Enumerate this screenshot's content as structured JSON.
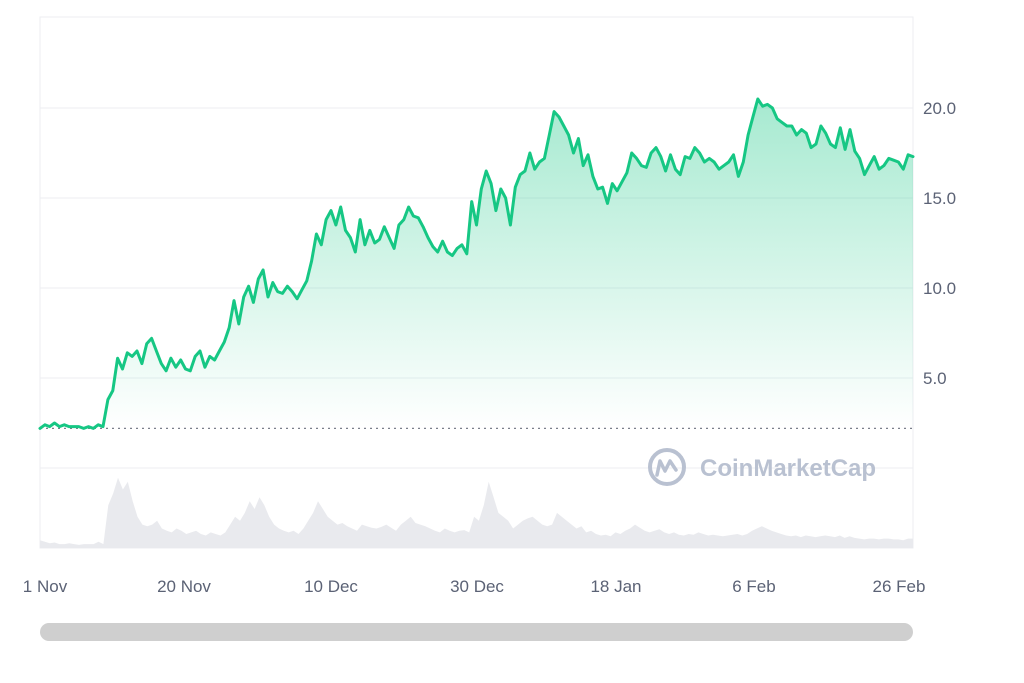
{
  "watermark": {
    "text": "CoinMarketCap",
    "icon": "coinmarketcap-logo-icon"
  },
  "colors": {
    "line": "#16c784",
    "area_top": "#16c784",
    "volume": "#e9eaee",
    "grid": "#eceef2",
    "axis_text": "#5b6275",
    "reference_line": "#7a7f8a",
    "scrollbar": "#cfcfcf"
  },
  "chart_data": {
    "type": "line",
    "title": "",
    "xlabel": "",
    "ylabel": "",
    "x_tick_labels": [
      "1 Nov",
      "20 Nov",
      "10 Dec",
      "30 Dec",
      "18 Jan",
      "6 Feb",
      "26 Feb"
    ],
    "y_tick_labels": [
      "5.0",
      "10.0",
      "15.0",
      "20.0"
    ],
    "y_ticks": [
      5,
      10,
      15,
      20
    ],
    "ylim": [
      -3,
      25
    ],
    "y_axis_position": "right",
    "grid": true,
    "reference_line_value": 2.2,
    "series": [
      {
        "values": [
          2.2,
          2.4,
          2.3,
          2.5,
          2.3,
          2.4,
          2.3,
          2.3,
          2.3,
          2.2,
          2.3,
          2.2,
          2.4,
          2.3,
          3.8,
          4.3,
          6.1,
          5.5,
          6.4,
          6.2,
          6.5,
          5.8,
          6.9,
          7.2,
          6.5,
          5.8,
          5.4,
          6.1,
          5.6,
          6.0,
          5.5,
          5.4,
          6.2,
          6.5,
          5.6,
          6.2,
          6.0,
          6.5,
          7.0,
          7.8,
          9.3,
          8.0,
          9.5,
          10.1,
          9.2,
          10.5,
          11.0,
          9.5,
          10.3,
          9.8,
          9.7,
          10.1,
          9.8,
          9.4,
          9.9,
          10.4,
          11.5,
          13.0,
          12.4,
          13.8,
          14.3,
          13.5,
          14.5,
          13.2,
          12.8,
          12.0,
          13.8,
          12.4,
          13.2,
          12.5,
          12.7,
          13.4,
          12.8,
          12.2,
          13.5,
          13.8,
          14.5,
          14.0,
          13.9,
          13.4,
          12.8,
          12.3,
          12.0,
          12.6,
          12.0,
          11.8,
          12.2,
          12.4,
          11.9,
          14.8,
          13.5,
          15.5,
          16.5,
          15.8,
          14.3,
          15.5,
          15.0,
          13.5,
          15.6,
          16.3,
          16.5,
          17.5,
          16.6,
          17.0,
          17.2,
          18.5,
          19.8,
          19.5,
          19.0,
          18.5,
          17.5,
          18.3,
          16.8,
          17.4,
          16.2,
          15.5,
          15.6,
          14.7,
          15.8,
          15.4,
          15.9,
          16.4,
          17.5,
          17.2,
          16.8,
          16.7,
          17.5,
          17.8,
          17.3,
          16.5,
          17.4,
          16.6,
          16.3,
          17.3,
          17.2,
          17.8,
          17.5,
          17.0,
          17.2,
          17.0,
          16.6,
          16.8,
          17.0,
          17.4,
          16.2,
          17.0,
          18.5,
          19.5,
          20.5,
          20.1,
          20.2,
          20.0,
          19.4,
          19.2,
          19.0,
          19.0,
          18.5,
          18.8,
          18.6,
          17.8,
          18.0,
          19.0,
          18.6,
          18.0,
          17.8,
          18.9,
          17.7,
          18.8,
          17.6,
          17.2,
          16.3,
          16.8,
          17.3,
          16.6,
          16.8,
          17.2,
          17.1,
          17.0,
          16.6,
          17.4,
          17.3
        ]
      }
    ],
    "volume": [
      0.1,
      0.08,
      0.06,
      0.07,
      0.05,
      0.05,
      0.06,
      0.05,
      0.04,
      0.05,
      0.05,
      0.05,
      0.08,
      0.05,
      0.55,
      0.7,
      0.9,
      0.75,
      0.85,
      0.6,
      0.4,
      0.3,
      0.28,
      0.3,
      0.35,
      0.25,
      0.22,
      0.2,
      0.25,
      0.22,
      0.18,
      0.2,
      0.22,
      0.18,
      0.16,
      0.2,
      0.18,
      0.16,
      0.2,
      0.3,
      0.4,
      0.35,
      0.45,
      0.6,
      0.5,
      0.65,
      0.55,
      0.4,
      0.3,
      0.25,
      0.22,
      0.2,
      0.22,
      0.18,
      0.25,
      0.35,
      0.45,
      0.6,
      0.5,
      0.4,
      0.35,
      0.3,
      0.32,
      0.28,
      0.25,
      0.22,
      0.3,
      0.28,
      0.26,
      0.25,
      0.27,
      0.3,
      0.26,
      0.22,
      0.3,
      0.35,
      0.4,
      0.32,
      0.3,
      0.28,
      0.25,
      0.22,
      0.2,
      0.25,
      0.22,
      0.2,
      0.22,
      0.23,
      0.2,
      0.4,
      0.35,
      0.55,
      0.85,
      0.65,
      0.45,
      0.4,
      0.35,
      0.25,
      0.3,
      0.35,
      0.38,
      0.4,
      0.35,
      0.3,
      0.28,
      0.3,
      0.45,
      0.4,
      0.35,
      0.3,
      0.25,
      0.28,
      0.2,
      0.22,
      0.18,
      0.16,
      0.17,
      0.15,
      0.2,
      0.18,
      0.22,
      0.25,
      0.3,
      0.26,
      0.22,
      0.2,
      0.22,
      0.24,
      0.2,
      0.18,
      0.2,
      0.17,
      0.16,
      0.18,
      0.17,
      0.2,
      0.18,
      0.16,
      0.17,
      0.16,
      0.15,
      0.16,
      0.17,
      0.18,
      0.16,
      0.18,
      0.22,
      0.25,
      0.28,
      0.25,
      0.22,
      0.2,
      0.18,
      0.16,
      0.15,
      0.16,
      0.14,
      0.16,
      0.15,
      0.14,
      0.15,
      0.16,
      0.15,
      0.14,
      0.16,
      0.13,
      0.15,
      0.13,
      0.12,
      0.11,
      0.12,
      0.12,
      0.11,
      0.12,
      0.12,
      0.11,
      0.11,
      0.1,
      0.12,
      0.12
    ]
  }
}
